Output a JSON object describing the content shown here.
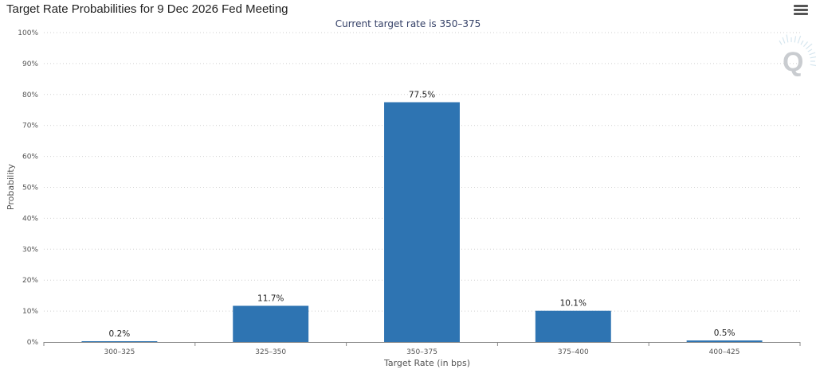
{
  "header": {
    "title": "Target Rate Probabilities for 9 Dec 2026 Fed Meeting",
    "subtitle": "Current target rate is 350–375",
    "menu_icon": "hamburger-menu-icon"
  },
  "watermark": {
    "text": "Q"
  },
  "colors": {
    "bar": "#2e74b2",
    "grid": "#cfcfcf",
    "axis": "#888888"
  },
  "chart_data": {
    "type": "bar",
    "title": "Target Rate Probabilities for 9 Dec 2026 Fed Meeting",
    "subtitle": "Current target rate is 350–375",
    "xlabel": "Target Rate (in bps)",
    "ylabel": "Probability",
    "categories": [
      "300–325",
      "325–350",
      "350–375",
      "375–400",
      "400–425"
    ],
    "values": [
      0.2,
      11.7,
      77.5,
      10.1,
      0.5
    ],
    "data_labels": [
      "0.2%",
      "11.7%",
      "77.5%",
      "10.1%",
      "0.5%"
    ],
    "ylim": [
      0,
      100
    ],
    "yticks": [
      0,
      10,
      20,
      30,
      40,
      50,
      60,
      70,
      80,
      90,
      100
    ],
    "ytick_labels": [
      "0%",
      "10%",
      "20%",
      "30%",
      "40%",
      "50%",
      "60%",
      "70%",
      "80%",
      "90%",
      "100%"
    ],
    "grid": true,
    "grid_style": "dotted",
    "legend": "none"
  }
}
